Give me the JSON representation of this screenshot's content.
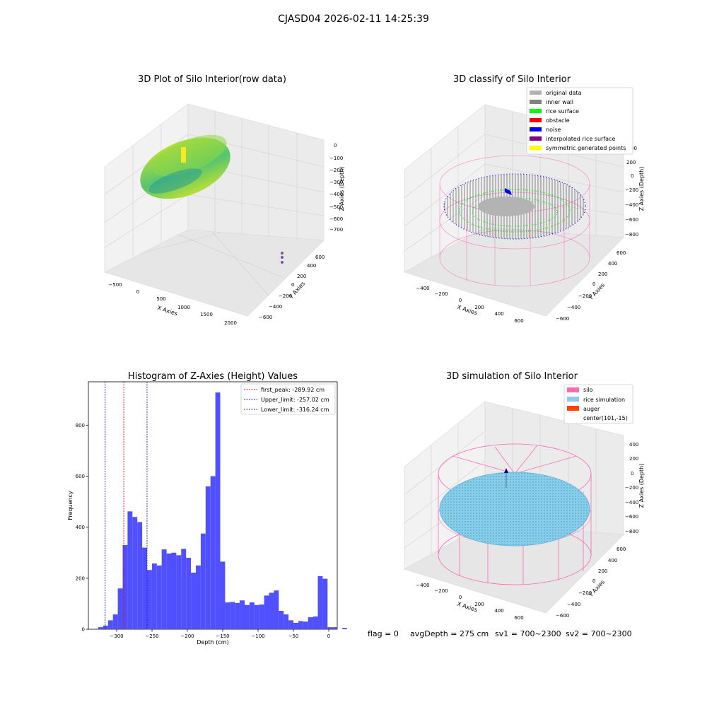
{
  "suptitle": "CJASD04 2026-02-11 14:25:39",
  "colors": {
    "hist_bar": "#4d4dff",
    "first_peak": "#e8000b",
    "limits": "#1f1fcf",
    "silo": "#ff69b4",
    "rice": "#87ceeb",
    "auger": "#ff4500",
    "rice_surface": "#00ff00",
    "obstacle": "#ff0000",
    "noise": "#0000ff",
    "inner_wall": "#808080",
    "original_data": "#b3b3b3",
    "interpolated": "#800080",
    "symmetric": "#ffff00"
  },
  "panels": {
    "raw": {
      "title": "3D Plot of Silo Interior(row data)",
      "xlabel": "X Axies",
      "ylabel": "Y Axies",
      "zlabel": "Z Axies (Depth)",
      "xticks": [
        "−500",
        "0",
        "500",
        "1000",
        "1500",
        "2000"
      ],
      "yticks": [
        "−600",
        "−400",
        "−200",
        "0",
        "200",
        "400",
        "600"
      ],
      "zticks": [
        "0",
        "−100",
        "−200",
        "−300",
        "−400",
        "−500",
        "−600",
        "−700"
      ]
    },
    "classify": {
      "title": "3D classify of Silo Interior",
      "xlabel": "X Axies",
      "ylabel": "Y Axies",
      "zlabel": "Z Axies (Depth)",
      "xticks": [
        "−400",
        "−200",
        "0",
        "200",
        "400",
        "600"
      ],
      "yticks": [
        "−600",
        "−400",
        "−200",
        "0",
        "200",
        "400",
        "600"
      ],
      "zticks": [
        "200",
        "0",
        "−200",
        "−400",
        "−600",
        "−800"
      ],
      "ztick_top_partial": "00",
      "legend": [
        "original data",
        "inner wall",
        "rice surface",
        "obstacle",
        "noise",
        "interpolated rice surface",
        "symmetric generated points"
      ]
    },
    "simulation": {
      "title": "3D simulation of Silo Interior",
      "xlabel": "X Axies",
      "ylabel": "Y Axies",
      "zlabel": "Z Axies (Depth)",
      "xticks": [
        "−400",
        "−200",
        "0",
        "200",
        "400",
        "600"
      ],
      "yticks": [
        "−600",
        "−400",
        "−200",
        "0",
        "200",
        "400",
        "600"
      ],
      "zticks": [
        "400",
        "200",
        "0",
        "−200",
        "−400",
        "−600",
        "−800"
      ],
      "legend": [
        "silo",
        "rice simulation",
        "auger",
        "center(101,-15)"
      ]
    }
  },
  "status_line": {
    "flag": "flag = 0",
    "avg_depth": "avgDepth = 275 cm",
    "sv1": "sv1 = 700~2300",
    "sv2": "sv2 = 700~2300"
  },
  "chart_data": [
    {
      "type": "bar",
      "title": "Histogram of Z-Axies (Height) Values",
      "xlabel": "Depth (cm)",
      "ylabel": "Frequency",
      "xlim": [
        -340,
        12
      ],
      "ylim": [
        0,
        970
      ],
      "xticks": [
        -300,
        -250,
        -200,
        -150,
        -100,
        -50,
        0
      ],
      "xtick_labels": [
        "−300",
        "−250",
        "−200",
        "−150",
        "−100",
        "−50",
        "0"
      ],
      "yticks": [
        0,
        200,
        400,
        600,
        800
      ],
      "bin_start": -326,
      "bin_width": 6.9,
      "values": [
        8,
        14,
        35,
        58,
        160,
        330,
        462,
        440,
        420,
        320,
        232,
        258,
        250,
        313,
        297,
        300,
        290,
        315,
        280,
        222,
        250,
        375,
        560,
        600,
        928,
        265,
        105,
        107,
        103,
        113,
        95,
        105,
        95,
        97,
        132,
        143,
        152,
        72,
        58,
        35,
        25,
        32,
        30,
        47,
        50,
        208,
        198,
        8,
        8,
        0,
        5
      ],
      "vlines": [
        {
          "label": "first_peak: -289.92 cm",
          "x": -289.92,
          "color": "#e8000b"
        },
        {
          "label": "Upper_limit: -257.02 cm",
          "x": -257.02,
          "color": "#1f1fcf"
        },
        {
          "label": "Lower_limit: -316.24 cm",
          "x": -316.24,
          "color": "#1f1fcf"
        }
      ],
      "grid": false,
      "legend_position": "top-right"
    }
  ]
}
